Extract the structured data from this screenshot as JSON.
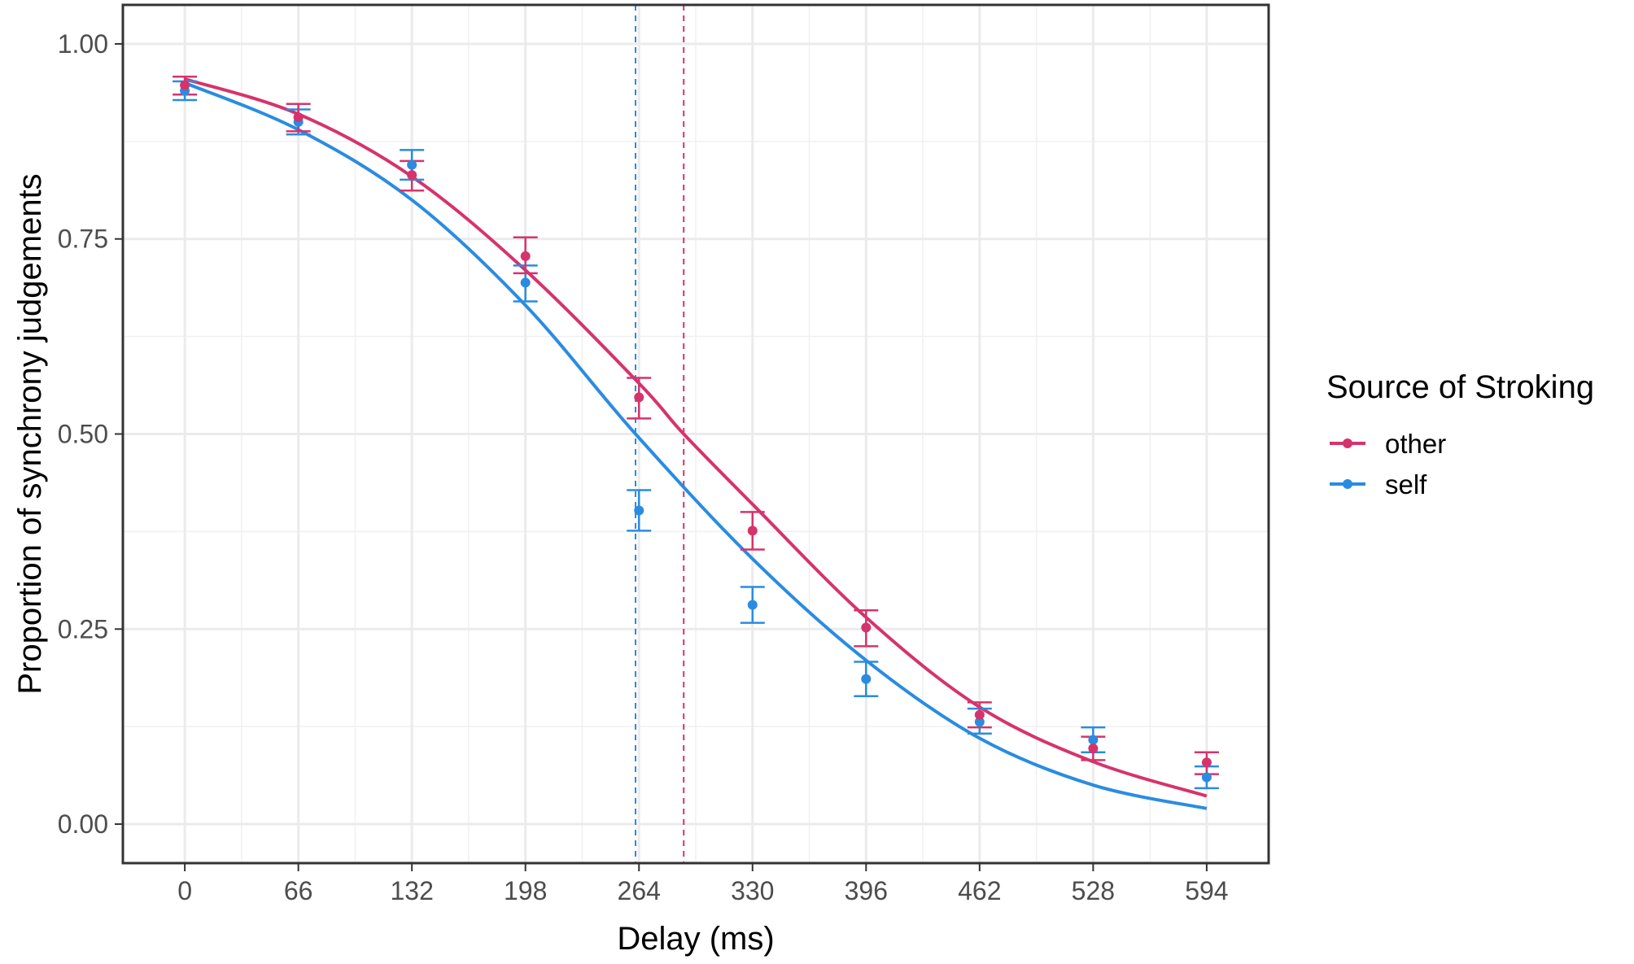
{
  "chart_data": {
    "type": "line",
    "xlabel": "Delay (ms)",
    "ylabel": "Proportion of synchrony judgements",
    "x_ticks": [
      0,
      66,
      132,
      198,
      264,
      330,
      396,
      462,
      528,
      594
    ],
    "y_ticks": [
      "0.00",
      "0.25",
      "0.50",
      "0.75",
      "1.00"
    ],
    "xlim": [
      -36,
      630
    ],
    "ylim": [
      -0.05,
      1.05
    ],
    "grid": true,
    "legend": {
      "title": "Source of Stroking",
      "position": "right",
      "items": [
        {
          "label": "other",
          "color": "#d6336c"
        },
        {
          "label": "self",
          "color": "#2a8ce0"
        }
      ]
    },
    "series": [
      {
        "name": "other",
        "color": "#d6336c",
        "points": {
          "x": [
            0,
            66,
            132,
            198,
            264,
            330,
            396,
            462,
            528,
            594
          ],
          "y": [
            0.947,
            0.906,
            0.832,
            0.728,
            0.547,
            0.376,
            0.252,
            0.14,
            0.097,
            0.079
          ],
          "lower": [
            0.935,
            0.888,
            0.812,
            0.706,
            0.52,
            0.352,
            0.228,
            0.124,
            0.082,
            0.064
          ],
          "upper": [
            0.958,
            0.923,
            0.85,
            0.752,
            0.572,
            0.4,
            0.274,
            0.156,
            0.112,
            0.092
          ]
        },
        "curve": {
          "x": [
            0,
            66,
            132,
            198,
            264,
            290,
            330,
            396,
            462,
            528,
            594
          ],
          "y": [
            0.955,
            0.91,
            0.83,
            0.71,
            0.565,
            0.5,
            0.41,
            0.265,
            0.15,
            0.08,
            0.036
          ]
        },
        "threshold_x": 290
      },
      {
        "name": "self",
        "color": "#2a8ce0",
        "points": {
          "x": [
            0,
            66,
            132,
            198,
            264,
            330,
            396,
            462,
            528,
            594
          ],
          "y": [
            0.94,
            0.9,
            0.845,
            0.694,
            0.402,
            0.281,
            0.186,
            0.131,
            0.108,
            0.06
          ],
          "lower": [
            0.928,
            0.884,
            0.826,
            0.67,
            0.376,
            0.258,
            0.164,
            0.116,
            0.092,
            0.046
          ],
          "upper": [
            0.952,
            0.916,
            0.864,
            0.716,
            0.428,
            0.304,
            0.208,
            0.148,
            0.124,
            0.074
          ]
        },
        "curve": {
          "x": [
            0,
            66,
            132,
            198,
            262,
            330,
            396,
            462,
            528,
            594
          ],
          "y": [
            0.95,
            0.89,
            0.8,
            0.665,
            0.5,
            0.34,
            0.21,
            0.11,
            0.05,
            0.02
          ]
        },
        "threshold_x": 262
      }
    ]
  }
}
